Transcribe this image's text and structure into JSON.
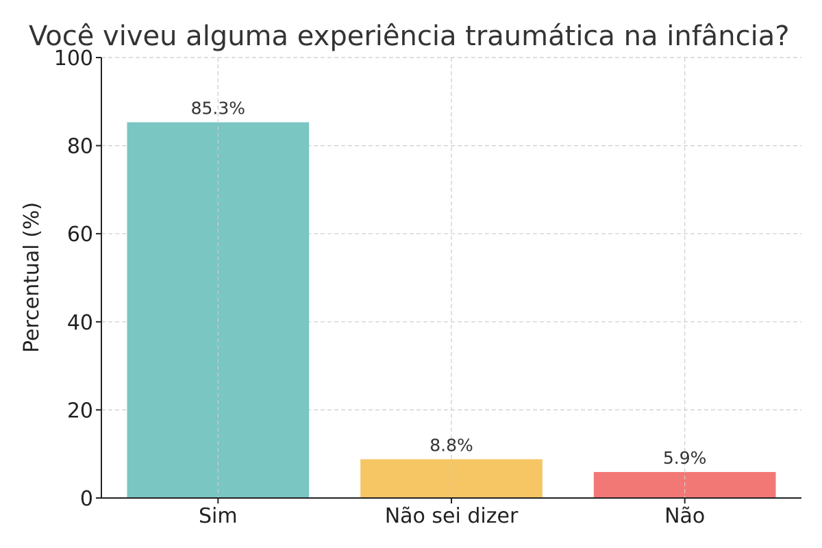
{
  "chart_data": {
    "type": "bar",
    "title": "Você viveu alguma experiência traumática na infância?",
    "xlabel": "",
    "ylabel": "Percentual (%)",
    "ylim": [
      0,
      100
    ],
    "yticks": [
      0,
      20,
      40,
      60,
      80,
      100
    ],
    "categories": [
      "Sim",
      "Não sei dizer",
      "Não"
    ],
    "values": [
      85.3,
      8.8,
      5.9
    ],
    "data_labels": [
      "85.3%",
      "8.8%",
      "5.9%"
    ],
    "colors": [
      "#7ac6c3",
      "#f6c664",
      "#f27876"
    ],
    "grid": true,
    "legend": false
  }
}
